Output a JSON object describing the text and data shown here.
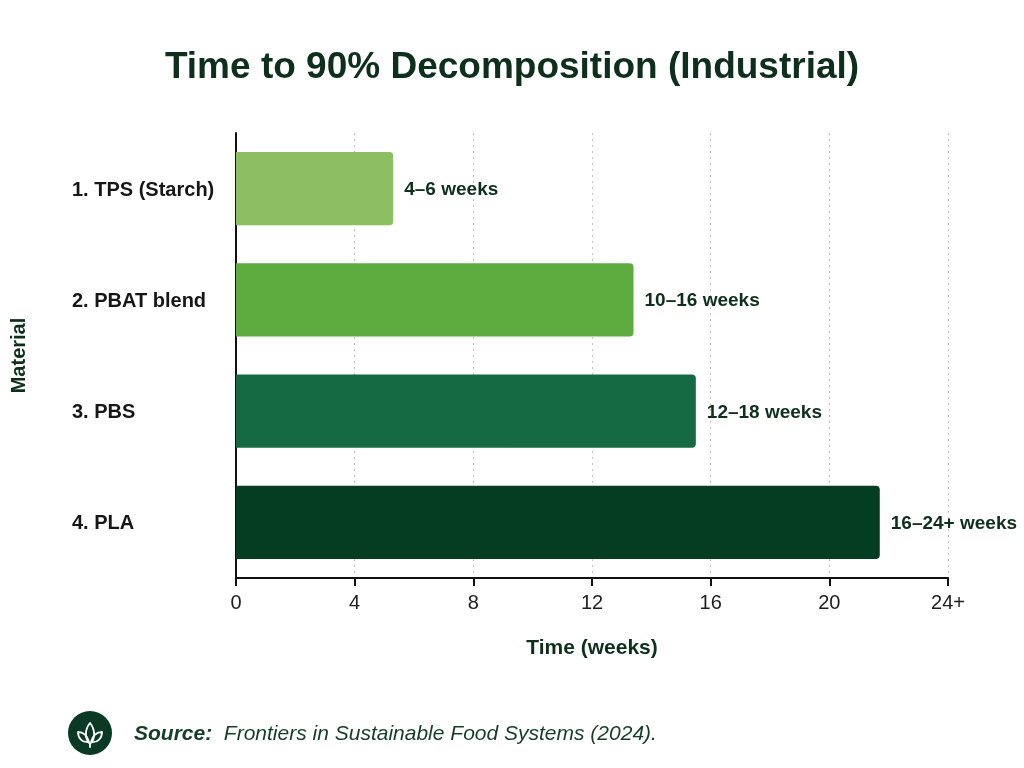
{
  "chart_data": {
    "type": "bar",
    "orientation": "horizontal",
    "title": "Time to 90% Decomposition (Industrial)",
    "xlabel": "Time (weeks)",
    "ylabel": "Material",
    "categories": [
      "1. TPS (Starch)",
      "2. PBAT blend",
      "3. PBS",
      "4. PLA"
    ],
    "values": [
      5.3,
      13.4,
      15.5,
      21.7
    ],
    "colors": [
      "#8cbf61",
      "#5eac40",
      "#156a44",
      "#053d23"
    ],
    "value_labels": [
      "4–6 weeks",
      "10–16 weeks",
      "12–18 weeks",
      "16–24+ weeks"
    ],
    "xlim": [
      0,
      24
    ],
    "xticks": [
      0,
      4,
      8,
      12,
      16,
      20,
      {
        "value": 24,
        "label": "24+"
      }
    ],
    "grid": "x",
    "annotations": [
      "Source:  Frontiers in Sustainable Food Systems (2024)."
    ]
  }
}
